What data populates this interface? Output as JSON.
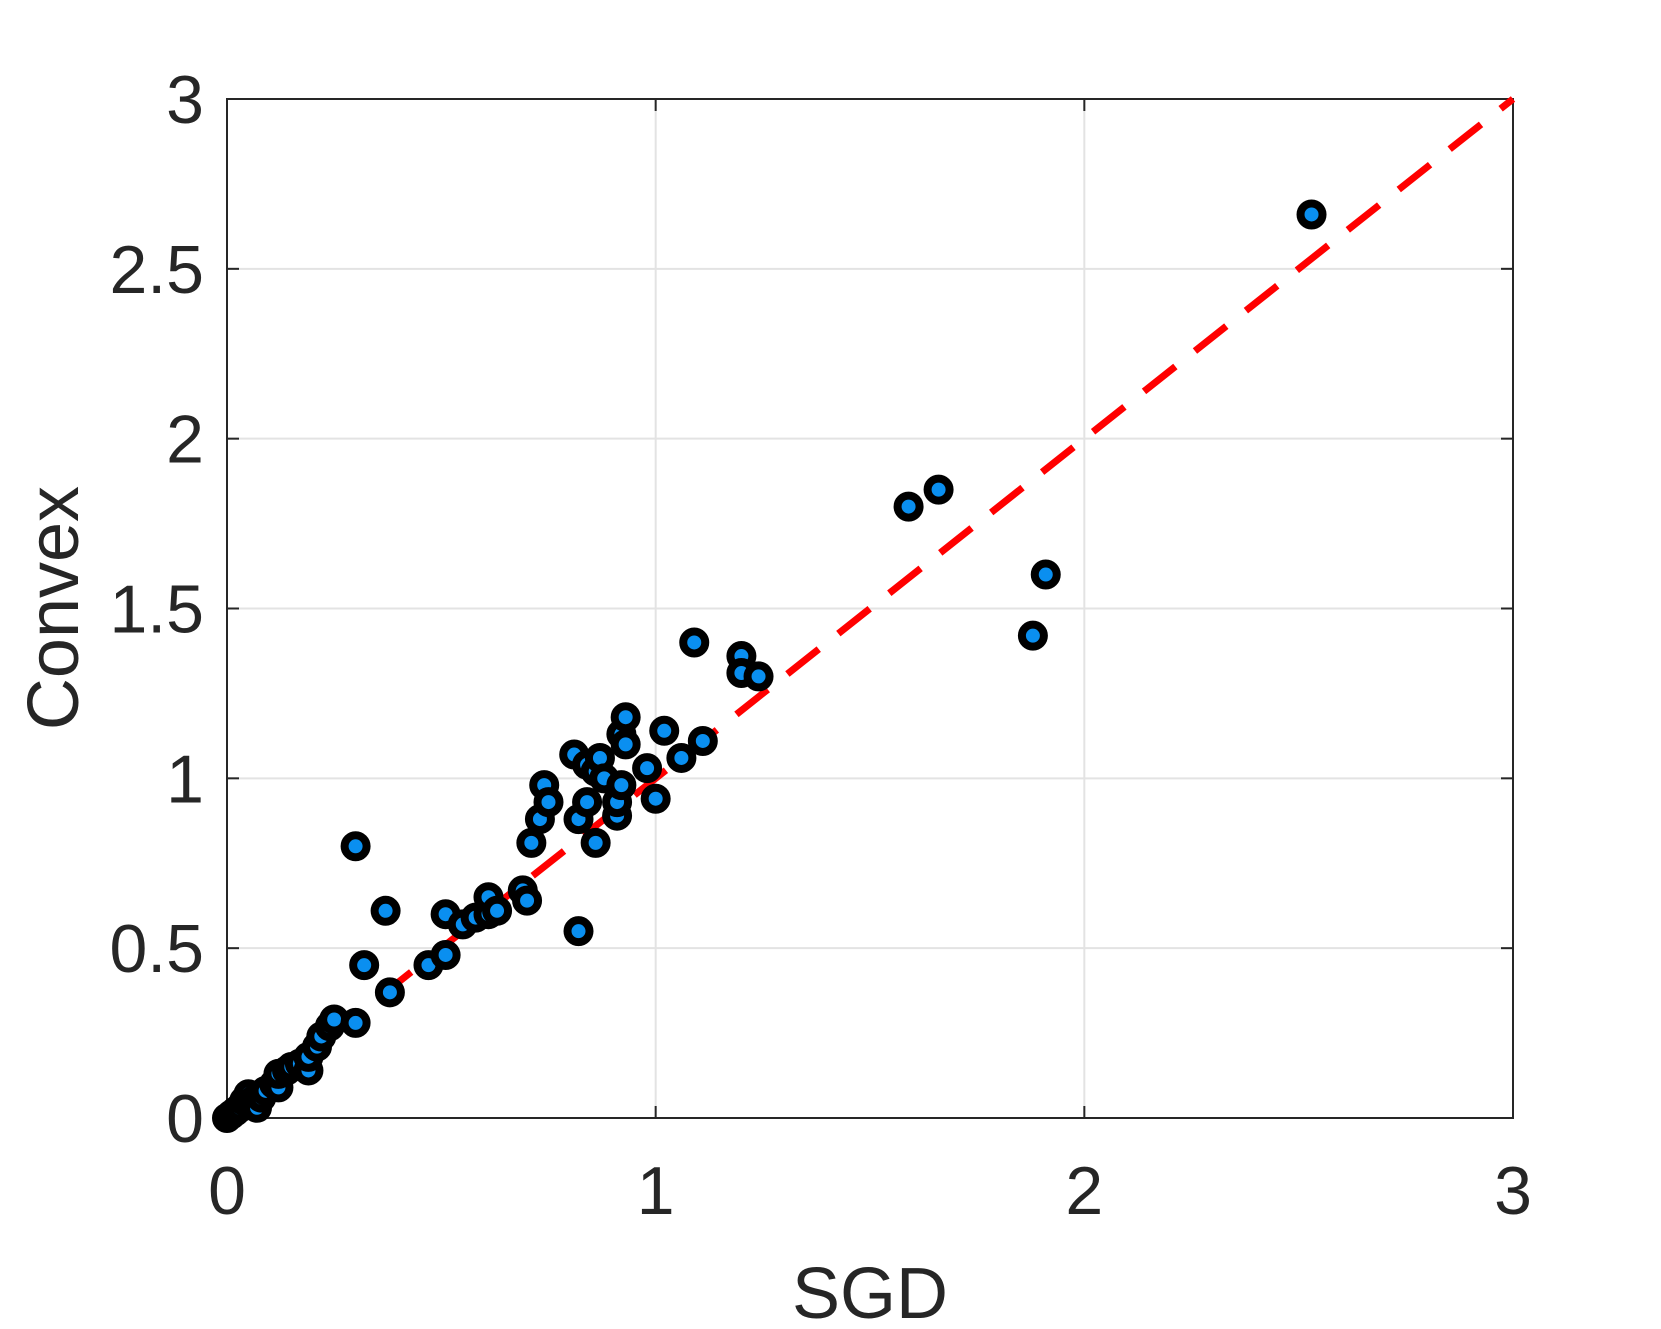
{
  "chart_data": {
    "type": "scatter",
    "title": "",
    "xlabel": "SGD",
    "ylabel": "Convex",
    "xlim": [
      0,
      3
    ],
    "ylim": [
      0,
      3
    ],
    "xticks": [
      0,
      1,
      2,
      3
    ],
    "yticks": [
      0,
      0.5,
      1,
      1.5,
      2,
      2.5,
      3
    ],
    "xtick_labels": [
      "0",
      "1",
      "2",
      "3"
    ],
    "ytick_labels": [
      "0",
      "0.5",
      "1",
      "1.5",
      "2",
      "2.5",
      "3"
    ],
    "grid": true,
    "reference_line": {
      "from": [
        0,
        0
      ],
      "to": [
        3,
        3
      ],
      "style": "dashed",
      "color": "#ff0000"
    },
    "marker": {
      "face_color": "#0a8ff0",
      "edge_color": "#000000"
    },
    "series": [
      {
        "points": [
          [
            0.0,
            0.0
          ],
          [
            0.01,
            0.01
          ],
          [
            0.02,
            0.02
          ],
          [
            0.03,
            0.03
          ],
          [
            0.04,
            0.05
          ],
          [
            0.05,
            0.07
          ],
          [
            0.06,
            0.05
          ],
          [
            0.07,
            0.03
          ],
          [
            0.08,
            0.06
          ],
          [
            0.09,
            0.08
          ],
          [
            0.11,
            0.1
          ],
          [
            0.12,
            0.09
          ],
          [
            0.12,
            0.13
          ],
          [
            0.14,
            0.14
          ],
          [
            0.15,
            0.15
          ],
          [
            0.17,
            0.16
          ],
          [
            0.19,
            0.14
          ],
          [
            0.19,
            0.18
          ],
          [
            0.21,
            0.21
          ],
          [
            0.22,
            0.24
          ],
          [
            0.24,
            0.27
          ],
          [
            0.25,
            0.29
          ],
          [
            0.3,
            0.28
          ],
          [
            0.3,
            0.8
          ],
          [
            0.32,
            0.45
          ],
          [
            0.37,
            0.61
          ],
          [
            0.38,
            0.37
          ],
          [
            0.47,
            0.45
          ],
          [
            0.51,
            0.6
          ],
          [
            0.51,
            0.48
          ],
          [
            0.55,
            0.57
          ],
          [
            0.58,
            0.59
          ],
          [
            0.61,
            0.6
          ],
          [
            0.61,
            0.65
          ],
          [
            0.63,
            0.61
          ],
          [
            0.69,
            0.67
          ],
          [
            0.7,
            0.64
          ],
          [
            0.71,
            0.81
          ],
          [
            0.73,
            0.88
          ],
          [
            0.74,
            0.98
          ],
          [
            0.75,
            0.93
          ],
          [
            0.81,
            1.07
          ],
          [
            0.82,
            0.88
          ],
          [
            0.82,
            0.55
          ],
          [
            0.84,
            1.04
          ],
          [
            0.84,
            0.93
          ],
          [
            0.86,
            1.02
          ],
          [
            0.86,
            0.81
          ],
          [
            0.87,
            1.06
          ],
          [
            0.88,
            1.0
          ],
          [
            0.91,
            0.89
          ],
          [
            0.91,
            0.93
          ],
          [
            0.92,
            1.13
          ],
          [
            0.92,
            0.98
          ],
          [
            0.93,
            1.18
          ],
          [
            0.93,
            1.1
          ],
          [
            0.98,
            1.03
          ],
          [
            1.0,
            0.94
          ],
          [
            1.02,
            1.14
          ],
          [
            1.06,
            1.06
          ],
          [
            1.09,
            1.4
          ],
          [
            1.11,
            1.11
          ],
          [
            1.2,
            1.36
          ],
          [
            1.2,
            1.31
          ],
          [
            1.24,
            1.3
          ],
          [
            1.59,
            1.8
          ],
          [
            1.66,
            1.85
          ],
          [
            1.88,
            1.42
          ],
          [
            1.91,
            1.6
          ],
          [
            2.53,
            2.66
          ]
        ]
      }
    ]
  }
}
